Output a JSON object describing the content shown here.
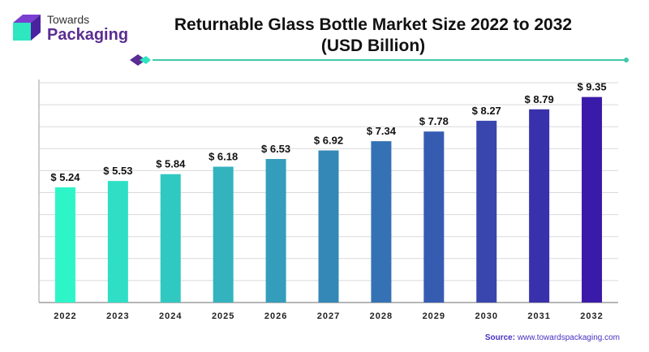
{
  "logo": {
    "line1": "Towards",
    "line2": "Packaging"
  },
  "colors": {
    "brand_purple": "#5a2d91",
    "teal": "#2ee6c0",
    "divider": "#40c9a8"
  },
  "chart_data": {
    "type": "bar",
    "title": "Returnable Glass Bottle Market Size 2022 to 2032",
    "subtitle": "(USD Billion)",
    "categories": [
      "2022",
      "2023",
      "2024",
      "2025",
      "2026",
      "2027",
      "2028",
      "2029",
      "2030",
      "2031",
      "2032"
    ],
    "values": [
      5.24,
      5.53,
      5.84,
      6.18,
      6.53,
      6.92,
      7.34,
      7.78,
      8.27,
      8.79,
      9.35
    ],
    "labels": [
      "$ 5.24",
      "$ 5.53",
      "$ 5.84",
      "$ 6.18",
      "$ 6.53",
      "$ 6.92",
      "$ 7.34",
      "$ 7.78",
      "$ 8.27",
      "$ 8.79",
      "$ 9.35"
    ],
    "ylim": [
      0,
      10
    ],
    "xlabel": "",
    "ylabel": "",
    "grid": true,
    "bar_color_gradient": [
      "#2ef5c8",
      "#3a1aa8"
    ]
  },
  "source": {
    "prefix": "Source:",
    "url": "www.towardspackaging.com"
  }
}
